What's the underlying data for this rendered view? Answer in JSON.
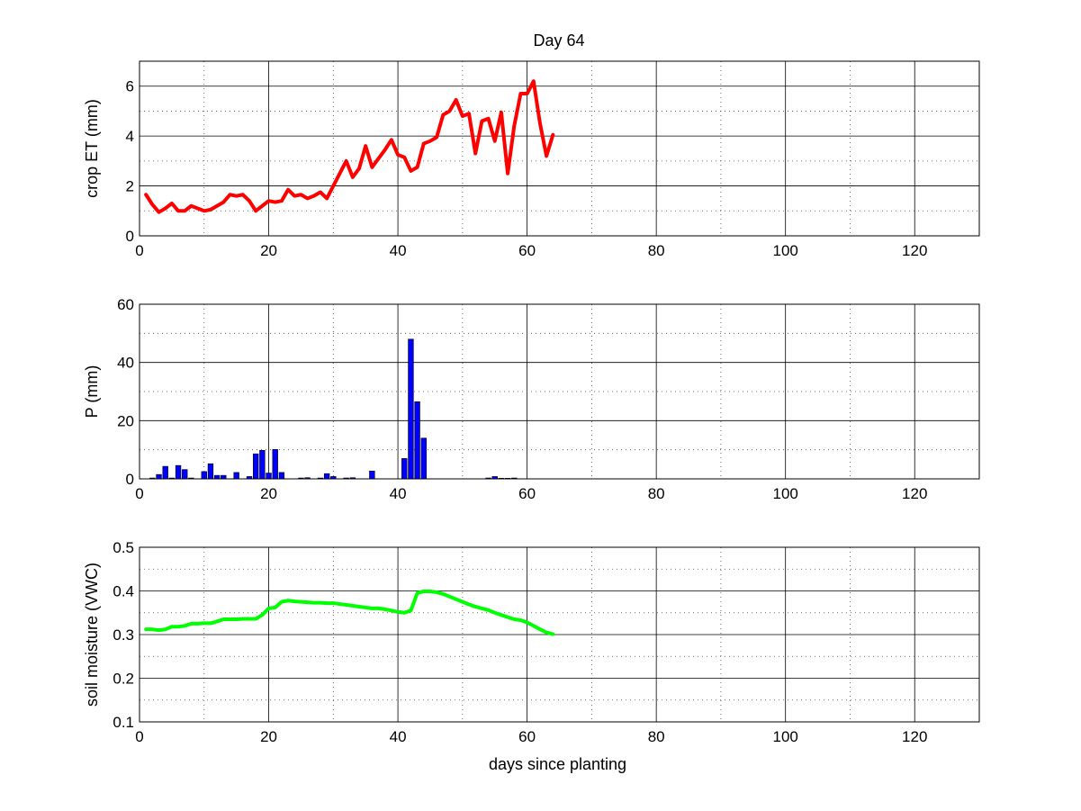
{
  "figure_title": "Day 64",
  "chart_data": [
    {
      "type": "line",
      "title": "Day 64",
      "xlabel": "",
      "ylabel": "crop ET (mm)",
      "xlim": [
        0,
        130
      ],
      "ylim": [
        0,
        7
      ],
      "xticks": [
        0,
        20,
        40,
        60,
        80,
        100,
        120
      ],
      "yticks": [
        0,
        2,
        4,
        6
      ],
      "grid": true,
      "series": [
        {
          "color": "#ff0000",
          "x": [
            1,
            2,
            3,
            4,
            5,
            6,
            7,
            8,
            9,
            10,
            11,
            12,
            13,
            14,
            15,
            16,
            17,
            18,
            19,
            20,
            21,
            22,
            23,
            24,
            25,
            26,
            27,
            28,
            29,
            30,
            31,
            32,
            33,
            34,
            35,
            36,
            37,
            38,
            39,
            40,
            41,
            42,
            43,
            44,
            45,
            46,
            47,
            48,
            49,
            50,
            51,
            52,
            53,
            54,
            55,
            56,
            57,
            58,
            59,
            60,
            61,
            62,
            63,
            64
          ],
          "y": [
            1.65,
            1.25,
            0.95,
            1.1,
            1.3,
            1.0,
            1.0,
            1.2,
            1.1,
            1.0,
            1.05,
            1.2,
            1.35,
            1.65,
            1.6,
            1.65,
            1.4,
            1.0,
            1.2,
            1.4,
            1.35,
            1.4,
            1.85,
            1.6,
            1.65,
            1.5,
            1.6,
            1.75,
            1.5,
            2.0,
            2.5,
            3.0,
            2.35,
            2.7,
            3.6,
            2.75,
            3.1,
            3.45,
            3.85,
            3.25,
            3.15,
            2.6,
            2.75,
            3.7,
            3.8,
            3.95,
            4.85,
            5.0,
            5.45,
            4.8,
            4.9,
            3.3,
            4.6,
            4.7,
            3.8,
            4.95,
            2.5,
            4.4,
            5.7,
            5.7,
            6.2,
            4.5,
            3.2,
            4.05
          ]
        }
      ]
    },
    {
      "type": "bar",
      "xlabel": "",
      "ylabel": "P (mm)",
      "xlim": [
        0,
        130
      ],
      "ylim": [
        0,
        60
      ],
      "xticks": [
        0,
        20,
        40,
        60,
        80,
        100,
        120
      ],
      "yticks": [
        0,
        20,
        40,
        60
      ],
      "grid": true,
      "series": [
        {
          "color": "#0000ff",
          "x": [
            2,
            3,
            4,
            5,
            6,
            7,
            8,
            10,
            11,
            12,
            13,
            15,
            17,
            18,
            19,
            20,
            21,
            22,
            25,
            26,
            28,
            29,
            30,
            32,
            33,
            36,
            41,
            42,
            43,
            44,
            54,
            55,
            56,
            57,
            58
          ],
          "y": [
            0.3,
            1.5,
            4.3,
            0.3,
            4.6,
            3.2,
            0.3,
            2.5,
            5.2,
            1.2,
            1.2,
            2.2,
            0.8,
            8.6,
            9.8,
            2.0,
            10.1,
            2.2,
            0.3,
            0.4,
            0.3,
            1.8,
            0.8,
            0.3,
            0.4,
            2.7,
            7.0,
            48.0,
            26.5,
            14.0,
            0.3,
            0.8,
            0.2,
            0.2,
            0.3
          ]
        }
      ]
    },
    {
      "type": "line",
      "xlabel": "days since planting",
      "ylabel": "soil moisture (VWC)",
      "xlim": [
        0,
        130
      ],
      "ylim": [
        0.1,
        0.5
      ],
      "xticks": [
        0,
        20,
        40,
        60,
        80,
        100,
        120
      ],
      "yticks": [
        0.1,
        0.2,
        0.3,
        0.4,
        0.5
      ],
      "grid": true,
      "series": [
        {
          "color": "#00ff00",
          "x": [
            1,
            2,
            3,
            4,
            5,
            6,
            7,
            8,
            9,
            10,
            11,
            12,
            13,
            14,
            15,
            16,
            17,
            18,
            19,
            20,
            21,
            22,
            23,
            24,
            25,
            26,
            27,
            28,
            29,
            30,
            31,
            32,
            33,
            34,
            35,
            36,
            37,
            38,
            39,
            40,
            41,
            42,
            43,
            44,
            45,
            46,
            47,
            48,
            49,
            50,
            51,
            52,
            53,
            54,
            55,
            56,
            57,
            58,
            59,
            60,
            61,
            62,
            63,
            64
          ],
          "y": [
            0.312,
            0.312,
            0.31,
            0.312,
            0.318,
            0.318,
            0.32,
            0.325,
            0.325,
            0.326,
            0.326,
            0.33,
            0.335,
            0.335,
            0.335,
            0.336,
            0.336,
            0.336,
            0.345,
            0.36,
            0.362,
            0.375,
            0.378,
            0.376,
            0.375,
            0.374,
            0.373,
            0.373,
            0.372,
            0.372,
            0.37,
            0.368,
            0.366,
            0.364,
            0.362,
            0.36,
            0.36,
            0.358,
            0.355,
            0.352,
            0.35,
            0.355,
            0.395,
            0.399,
            0.399,
            0.397,
            0.393,
            0.387,
            0.381,
            0.375,
            0.369,
            0.364,
            0.36,
            0.356,
            0.35,
            0.345,
            0.34,
            0.335,
            0.333,
            0.328,
            0.32,
            0.312,
            0.305,
            0.301
          ]
        }
      ]
    }
  ]
}
